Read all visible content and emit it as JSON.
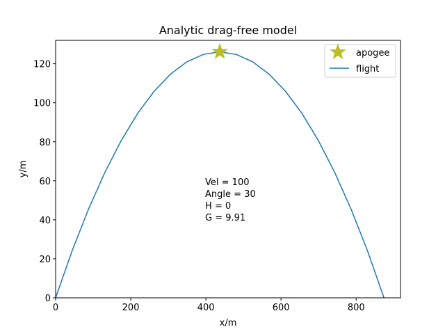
{
  "chart_data": {
    "type": "line",
    "title": "Analytic drag-free model",
    "xlabel": "x/m",
    "ylabel": "y/m",
    "xlim": [
      0,
      918
    ],
    "ylim": [
      0,
      132
    ],
    "xticks": [
      0,
      200,
      400,
      600,
      800
    ],
    "yticks": [
      0,
      20,
      40,
      60,
      80,
      100,
      120
    ],
    "grid": false,
    "legend_position": "top-right",
    "series": [
      {
        "name": "flight",
        "color": "#1f77b4",
        "x": [
          0,
          43.7,
          87.4,
          131.1,
          174.8,
          218.5,
          262.2,
          305.9,
          349.6,
          393.3,
          437.0,
          480.7,
          524.4,
          568.1,
          611.8,
          655.5,
          699.2,
          742.9,
          786.6,
          830.3,
          874.0
        ],
        "y": [
          0,
          24.0,
          45.4,
          64.3,
          80.7,
          94.6,
          105.9,
          114.7,
          121.0,
          124.8,
          126.1,
          124.8,
          121.0,
          114.7,
          105.9,
          94.6,
          80.7,
          64.3,
          45.4,
          24.0,
          0
        ]
      }
    ],
    "markers": [
      {
        "name": "apogee",
        "shape": "star",
        "color": "#bcbd22",
        "x": 437,
        "y": 126.1
      }
    ],
    "annotation": {
      "x": 398,
      "y": 60,
      "lines": [
        "Vel = 100",
        "Angle = 30",
        "H = 0",
        "G = 9.91"
      ]
    }
  }
}
